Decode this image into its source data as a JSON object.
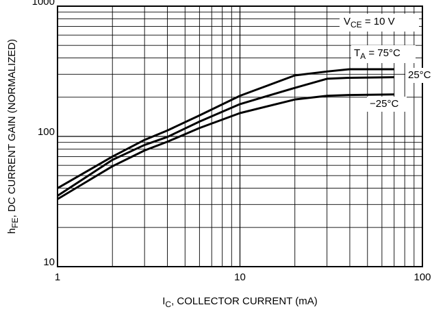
{
  "chart_data": {
    "type": "line",
    "log_x": true,
    "log_y": true,
    "grid": true,
    "color": "#000000",
    "xlabel": {
      "main": "I",
      "sub": "C",
      "rest": ", COLLECTOR CURRENT (mA)"
    },
    "ylabel": {
      "main": "h",
      "sub": "FE",
      "rest": ", DC CURRENT GAIN (NORMALIZED)"
    },
    "annotation": {
      "main": "V",
      "sub": "CE",
      "rest": " = 10 V"
    },
    "x": [
      1,
      2,
      3,
      4,
      6,
      10,
      20,
      30,
      40,
      70
    ],
    "series": [
      {
        "name": {
          "main": "T",
          "sub": "A",
          "rest": " = 75°C"
        },
        "color": "#000000",
        "values": [
          40,
          70,
          94,
          111,
          145,
          205,
          294,
          315,
          328,
          328
        ]
      },
      {
        "name": "25°C",
        "color": "#000000",
        "values": [
          35,
          66,
          86,
          99,
          130,
          177,
          236,
          277,
          282,
          285
        ]
      },
      {
        "name": "−25°C",
        "color": "#000000",
        "values": [
          33,
          59,
          78,
          91,
          116,
          151,
          192,
          205,
          208,
          210
        ]
      }
    ],
    "xlim": [
      1,
      100
    ],
    "ylim": [
      10,
      1000
    ],
    "xticks": [
      1,
      10,
      100
    ],
    "yticks": [
      10,
      100,
      1000
    ],
    "xminor_ticks": [
      2,
      3,
      4,
      5,
      6,
      7,
      8,
      9,
      20,
      30,
      40,
      50,
      60,
      70,
      80,
      90
    ],
    "yminor_ticks": [
      20,
      30,
      40,
      50,
      60,
      70,
      80,
      90,
      200,
      300,
      400,
      500,
      600,
      700,
      800,
      900
    ]
  }
}
